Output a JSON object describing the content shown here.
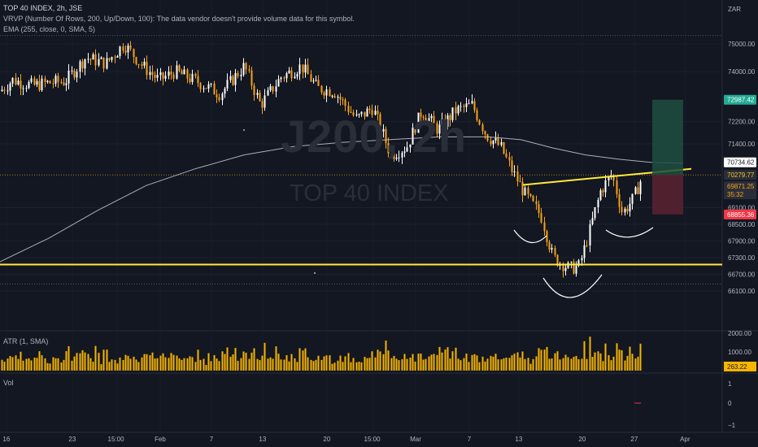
{
  "header": {
    "title": "TOP 40 INDEX, 2h, JSE",
    "vrvp": "VRVP (Number Of Rows, 200, Up/Down, 100): The data vendor doesn't provide volume data for this symbol.",
    "ema": "EMA (255, close, 0, SMA, 5)",
    "currency": "ZAR"
  },
  "watermark": {
    "symbol": "J200, 2h",
    "name": "TOP 40 INDEX"
  },
  "panes": {
    "atr_label": "ATR (1, SMA)",
    "vol_label": "Vol"
  },
  "colors": {
    "background": "#131722",
    "up": "#ffffff",
    "down": "#f7a21b",
    "ema": "#d1d4dc",
    "trendline": "#ffeb3b",
    "profit": "#1e4d40",
    "loss": "#5c2230",
    "atr": "#f7b500"
  },
  "chart_data": [
    {
      "type": "candlestick",
      "title": "TOP 40 INDEX, 2h, JSE",
      "y_axis_ticks": [
        75000,
        74000,
        72200,
        71400,
        69100,
        68500,
        67900,
        67300,
        66700,
        66100
      ],
      "ylim": [
        65800,
        75600
      ],
      "x_axis_labels": [
        "16",
        "23",
        "15:00",
        "Feb",
        "7",
        "13",
        "20",
        "15:00",
        "Mar",
        "7",
        "13",
        "20",
        "27",
        "Apr"
      ],
      "price_labels": {
        "target": "72987.42",
        "ema_value": "70734.62",
        "neckline": "70279.77",
        "last_price": "69871.25",
        "countdown": "35:32",
        "stop": "68855.36"
      },
      "annotations": [
        "horizontal support line near 67100",
        "rising neckline from ~69900 to ~70500",
        "long position: entry ~70279, target 72987.42, stop 68855.36",
        "inverse head and shoulders arcs"
      ],
      "grid": true
    },
    {
      "type": "bar",
      "title": "ATR (1, SMA)",
      "y_axis_ticks": [
        2000,
        1000
      ],
      "last_value": "263.22"
    },
    {
      "type": "bar",
      "title": "Vol",
      "y_axis_ticks": [
        1,
        0,
        -1
      ]
    }
  ]
}
